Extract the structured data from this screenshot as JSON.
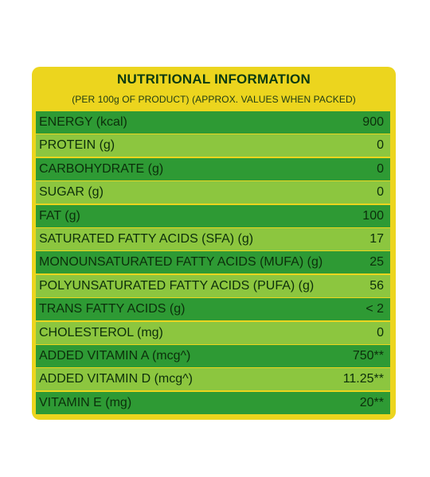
{
  "panel": {
    "title": "NUTRITIONAL INFORMATION",
    "subtitle": "(PER 100g OF PRODUCT) (APPROX. VALUES WHEN PACKED)"
  },
  "rows": [
    {
      "name": "ENERGY (kcal)",
      "value": "900"
    },
    {
      "name": "PROTEIN (g)",
      "value": "0"
    },
    {
      "name": "CARBOHYDRATE (g)",
      "value": "0"
    },
    {
      "name": "SUGAR (g)",
      "value": "0"
    },
    {
      "name": "FAT (g)",
      "value": "100"
    },
    {
      "name": "SATURATED FATTY ACIDS (SFA) (g)",
      "value": "17"
    },
    {
      "name": "MONOUNSATURATED FATTY ACIDS (MUFA) (g)",
      "value": "25"
    },
    {
      "name": "POLYUNSATURATED FATTY ACIDS (PUFA) (g)",
      "value": "56"
    },
    {
      "name": "TRANS FATTY ACIDS (g)",
      "value": "< 2"
    },
    {
      "name": "CHOLESTEROL (mg)",
      "value": "0"
    },
    {
      "name": "ADDED VITAMIN A (mcg^)",
      "value": "750**"
    },
    {
      "name": "ADDED VITAMIN D (mcg^)",
      "value": "11.25**"
    },
    {
      "name": "VITAMIN E (mg)",
      "value": "20**"
    }
  ],
  "colors": {
    "panel_yellow": "#ecd51e",
    "row_dark_green": "#2e9a34",
    "row_light_green": "#8cc63f",
    "text_dark": "#0c2e0b"
  }
}
